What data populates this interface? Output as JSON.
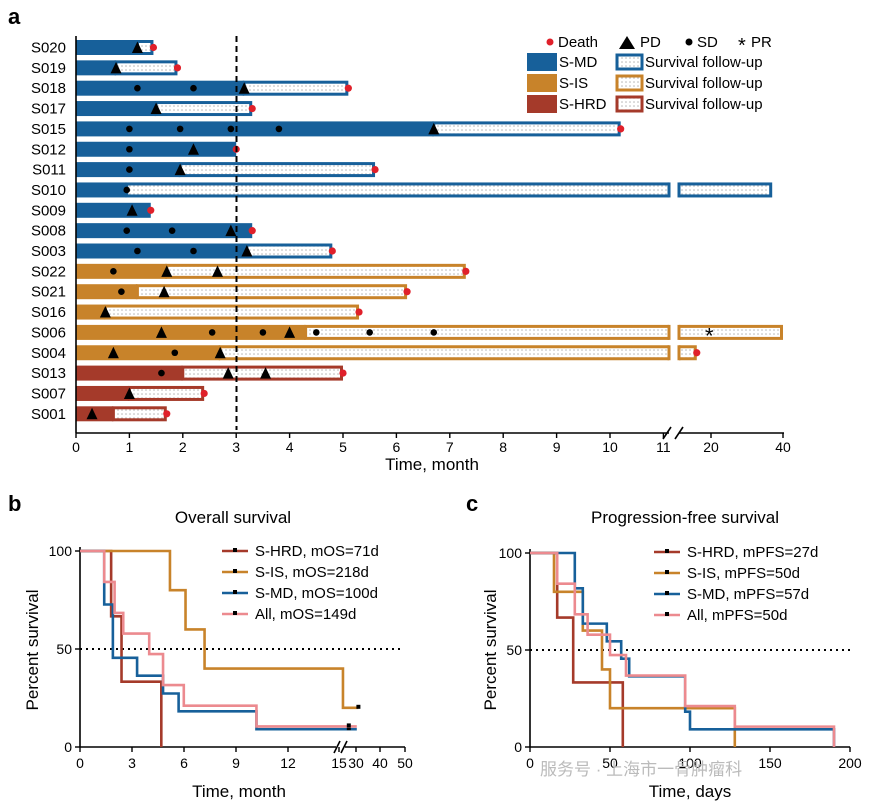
{
  "panels": {
    "a": "a",
    "b": "b",
    "c": "c"
  },
  "colors": {
    "S-MD": "#17609a",
    "S-IS": "#c8832a",
    "S-HRD": "#a53a2a",
    "death": "#e0202a"
  },
  "watermark": "服务号 · 上海市一骨肿瘤科",
  "chart_data": [
    {
      "type": "swimmer",
      "xlabel": "Time, month",
      "x_ticks": [
        "0",
        "1",
        "2",
        "3",
        "4",
        "5",
        "6",
        "7",
        "8",
        "9",
        "10",
        "11",
        "20",
        "40"
      ],
      "reference_line_month": 3,
      "legend": {
        "markers": [
          "Death",
          "PD",
          "SD",
          "PR"
        ],
        "groups": [
          {
            "name": "S-MD",
            "followup": "Survival follow-up"
          },
          {
            "name": "S-IS",
            "followup": "Survival follow-up"
          },
          {
            "name": "S-HRD",
            "followup": "Survival follow-up"
          }
        ]
      },
      "patients": [
        {
          "id": "S020",
          "group": "S-MD",
          "tx_end": 1.15,
          "fu_end": 1.45,
          "death": true,
          "pd": [
            1.15
          ],
          "sd": []
        },
        {
          "id": "S019",
          "group": "S-MD",
          "tx_end": 0.75,
          "fu_end": 1.9,
          "death": true,
          "pd": [
            0.75
          ],
          "sd": []
        },
        {
          "id": "S018",
          "group": "S-MD",
          "tx_end": 3.15,
          "fu_end": 5.1,
          "death": true,
          "pd": [
            3.15
          ],
          "sd": [
            1.15,
            2.2
          ]
        },
        {
          "id": "S017",
          "group": "S-MD",
          "tx_end": 1.5,
          "fu_end": 3.3,
          "death": true,
          "pd": [
            1.5
          ],
          "sd": []
        },
        {
          "id": "S015",
          "group": "S-MD",
          "tx_end": 6.7,
          "fu_end": 10.2,
          "death": true,
          "pd": [
            6.7
          ],
          "sd": [
            1.0,
            1.95,
            2.9,
            3.8
          ]
        },
        {
          "id": "S012",
          "group": "S-MD",
          "tx_end": 3.0,
          "fu_end": 3.0,
          "death": true,
          "pd": [
            2.2
          ],
          "sd": [
            1.0
          ]
        },
        {
          "id": "S011",
          "group": "S-MD",
          "tx_end": 1.95,
          "fu_end": 5.6,
          "death": true,
          "pd": [
            1.95
          ],
          "sd": [
            1.0
          ]
        },
        {
          "id": "S010",
          "group": "S-MD",
          "tx_end": 0.95,
          "fu_end": "~37",
          "death": false,
          "pd": [],
          "sd": [
            0.95
          ]
        },
        {
          "id": "S009",
          "group": "S-MD",
          "tx_end": 1.4,
          "fu_end": 1.4,
          "death": true,
          "pd": [
            1.05
          ],
          "sd": []
        },
        {
          "id": "S008",
          "group": "S-MD",
          "tx_end": 3.3,
          "fu_end": 3.3,
          "death": true,
          "pd": [
            2.9
          ],
          "sd": [
            0.95,
            1.8
          ]
        },
        {
          "id": "S003",
          "group": "S-MD",
          "tx_end": 3.2,
          "fu_end": 4.8,
          "death": true,
          "pd": [
            3.2
          ],
          "sd": [
            1.15,
            2.2
          ]
        },
        {
          "id": "S022",
          "group": "S-IS",
          "tx_end": 1.7,
          "fu_end": 7.3,
          "death": true,
          "pd": [
            1.7,
            2.65
          ],
          "sd": [
            0.7
          ]
        },
        {
          "id": "S021",
          "group": "S-IS",
          "tx_end": 1.15,
          "fu_end": 6.2,
          "death": true,
          "pd": [
            1.65
          ],
          "sd": [
            0.85
          ]
        },
        {
          "id": "S016",
          "group": "S-IS",
          "tx_end": 0.55,
          "fu_end": 5.3,
          "death": true,
          "pd": [
            0.55
          ],
          "sd": []
        },
        {
          "id": "S006",
          "group": "S-IS",
          "tx_end": 4.3,
          "fu_end": "~40",
          "death": false,
          "pd": [
            1.6,
            4.0
          ],
          "sd": [
            2.55,
            3.5,
            4.5,
            5.5,
            6.7
          ],
          "pr": [
            "~20"
          ]
        },
        {
          "id": "S004",
          "group": "S-IS",
          "tx_end": 2.7,
          "fu_end": "~16",
          "death": true,
          "pd": [
            0.7,
            2.7
          ],
          "sd": [
            1.85
          ]
        },
        {
          "id": "S013",
          "group": "S-HRD",
          "tx_end": 2.0,
          "fu_end": 5.0,
          "death": true,
          "pd": [
            2.85,
            3.55
          ],
          "sd": [
            1.6
          ]
        },
        {
          "id": "S007",
          "group": "S-HRD",
          "tx_end": 1.0,
          "fu_end": 2.4,
          "death": true,
          "pd": [
            1.0
          ],
          "sd": []
        },
        {
          "id": "S001",
          "group": "S-HRD",
          "tx_end": 0.7,
          "fu_end": 1.7,
          "death": true,
          "pd": [
            0.3
          ],
          "sd": []
        }
      ]
    },
    {
      "type": "line",
      "title": "Overall survival",
      "xlabel": "Time, month",
      "ylabel": "Percent survival",
      "y_ticks": [
        0,
        50,
        100
      ],
      "x_ticks": [
        "0",
        "3",
        "6",
        "9",
        "12",
        "15",
        "30",
        "40",
        "50"
      ],
      "series": [
        {
          "name": "S-HRD, mOS=71d",
          "x": [
            0,
            1.8,
            1.8,
            2.4,
            2.4,
            4.7,
            4.7
          ],
          "y": [
            100,
            100,
            66.7,
            66.7,
            33.3,
            33.3,
            0
          ]
        },
        {
          "name": "S-IS, mOS=218d",
          "x": [
            0,
            5.2,
            5.2,
            6.1,
            6.1,
            7.2,
            7.2,
            15.2,
            15.2,
            36
          ],
          "y": [
            100,
            100,
            80,
            80,
            60,
            60,
            40,
            40,
            20,
            20
          ]
        },
        {
          "name": "S-MD, mOS=100d",
          "x": [
            0,
            1.4,
            1.4,
            1.9,
            1.9,
            3.3,
            3.3,
            4.8,
            4.8,
            5.7,
            5.7,
            10.2,
            10.2,
            16,
            16,
            32
          ],
          "y": [
            100,
            100,
            72.7,
            72.7,
            45.5,
            45.5,
            36.4,
            36.4,
            27.3,
            27.3,
            18.2,
            18.2,
            9.1,
            9.1,
            9.1,
            9.1
          ]
        },
        {
          "name": "All, mOS=149d",
          "x": [
            0,
            1.4,
            1.4,
            2.0,
            2.0,
            2.5,
            2.5,
            4.0,
            4.0,
            4.8,
            4.8,
            6.0,
            6.0,
            10.2,
            10.2,
            16,
            16,
            32
          ],
          "y": [
            100,
            100,
            84.2,
            84.2,
            68.4,
            68.4,
            57.9,
            57.9,
            47.4,
            47.4,
            31.6,
            31.6,
            21.1,
            21.1,
            10.5,
            10.5,
            10.5,
            10.5
          ]
        }
      ],
      "reference_line": 50
    },
    {
      "type": "line",
      "title": "Progression-free survival",
      "xlabel": "Time, days",
      "ylabel": "Percent survival",
      "y_ticks": [
        0,
        50,
        100
      ],
      "x_ticks": [
        "0",
        "50",
        "100",
        "150",
        "200"
      ],
      "series": [
        {
          "name": "S-HRD, mPFS=27d",
          "x": [
            0,
            17,
            17,
            27,
            27,
            58,
            58
          ],
          "y": [
            100,
            100,
            66.7,
            66.7,
            33.3,
            33.3,
            0
          ]
        },
        {
          "name": "S-IS, mPFS=50d",
          "x": [
            0,
            15,
            15,
            33,
            33,
            45,
            45,
            50,
            50,
            85,
            85,
            128,
            128
          ],
          "y": [
            100,
            100,
            80,
            80,
            60,
            60,
            40,
            40,
            20,
            20,
            20,
            20,
            0
          ]
        },
        {
          "name": "S-MD, mPFS=57d",
          "x": [
            0,
            28,
            28,
            33,
            33,
            48,
            48,
            57,
            57,
            62,
            62,
            97,
            97,
            100,
            100,
            190,
            190
          ],
          "y": [
            100,
            100,
            81.8,
            81.8,
            63.6,
            63.6,
            54.5,
            54.5,
            45.5,
            45.5,
            36.4,
            36.4,
            18.2,
            18.2,
            9.1,
            9.1,
            0
          ]
        },
        {
          "name": "All, mPFS=50d",
          "x": [
            0,
            17,
            17,
            28,
            28,
            36,
            36,
            50,
            50,
            60,
            60,
            97,
            97,
            128,
            128,
            190,
            190
          ],
          "y": [
            100,
            100,
            84.2,
            84.2,
            68.4,
            68.4,
            57.9,
            57.9,
            47.4,
            47.4,
            36.8,
            36.8,
            21.1,
            21.1,
            10.5,
            10.5,
            0
          ]
        }
      ],
      "reference_line": 50
    }
  ]
}
